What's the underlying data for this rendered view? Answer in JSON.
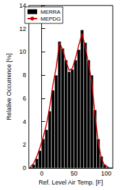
{
  "chart_data": {
    "type": "histogram",
    "xlabel": "Ref. Level Air Temp. [F]",
    "ylabel": "Relative Occurrence [%]",
    "bins": [
      -20,
      -15,
      -10,
      -5,
      0,
      5,
      10,
      15,
      20,
      25,
      30,
      35,
      40,
      45,
      50,
      55,
      60,
      65,
      70,
      75,
      80,
      85,
      90,
      95,
      100,
      105
    ],
    "series": [
      {
        "name": "MERRA",
        "type": "bar",
        "color": "#000000",
        "values": [
          0.1,
          0.3,
          0.8,
          1.5,
          2.5,
          3.3,
          4.9,
          6.7,
          8.0,
          10.9,
          10.3,
          9.3,
          8.3,
          8.5,
          9.3,
          10.2,
          11.9,
          10.8,
          9.3,
          8.0,
          5.0,
          2.5,
          1.0,
          0.3,
          0.1
        ]
      },
      {
        "name": "MEPDG",
        "type": "line",
        "color": "#cc0000",
        "values": [
          0.1,
          0.4,
          1.0,
          1.8,
          2.7,
          3.8,
          5.3,
          7.2,
          8.7,
          10.8,
          10.2,
          9.2,
          8.4,
          8.6,
          9.5,
          10.6,
          11.6,
          10.4,
          9.0,
          7.4,
          4.6,
          2.2,
          0.8,
          0.2,
          0.1
        ]
      }
    ],
    "xlim": [
      -20,
      110
    ],
    "xticks": [
      0,
      50,
      100
    ],
    "ylim": [
      0,
      14
    ],
    "yticks": [
      0,
      2,
      4,
      6,
      8,
      10,
      12,
      14
    ],
    "grid": false,
    "legend": "upper left"
  }
}
